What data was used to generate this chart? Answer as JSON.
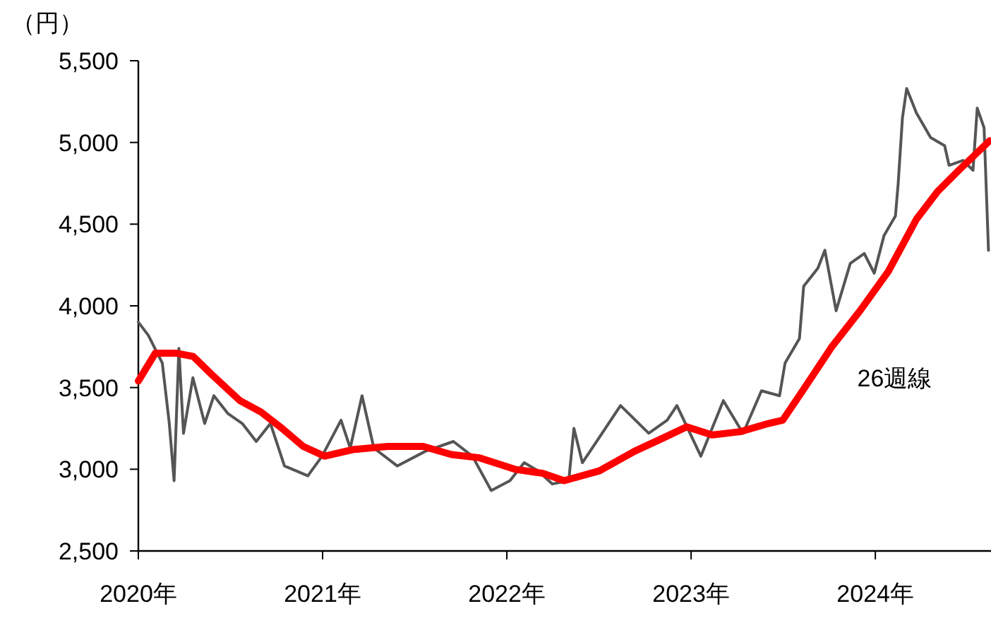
{
  "chart_data": {
    "type": "line",
    "ylabel": "（円）",
    "xlim": [
      2020,
      2024.62
    ],
    "xticks": [
      {
        "value": 2020,
        "label": "2020年"
      },
      {
        "value": 2021,
        "label": "2021年"
      },
      {
        "value": 2022,
        "label": "2022年"
      },
      {
        "value": 2023,
        "label": "2023年"
      },
      {
        "value": 2024,
        "label": "2024年"
      }
    ],
    "ylim": [
      2500,
      5500
    ],
    "yticks": [
      {
        "value": 2500,
        "label": "2,500"
      },
      {
        "value": 3000,
        "label": "3,000"
      },
      {
        "value": 3500,
        "label": "3,500"
      },
      {
        "value": 4000,
        "label": "4,000"
      },
      {
        "value": 4500,
        "label": "4,500"
      },
      {
        "value": 5000,
        "label": "5,000"
      },
      {
        "value": 5500,
        "label": "5,500"
      }
    ],
    "grid": false,
    "legend": false,
    "marker": "none",
    "series": [
      {
        "color": "#555555",
        "x": [
          2020,
          2020.054,
          2020.13,
          2020.168,
          2020.194,
          2020.22,
          2020.245,
          2020.296,
          2020.36,
          2020.41,
          2020.487,
          2020.564,
          2020.64,
          2020.717,
          2020.793,
          2020.92,
          2020.997,
          2021.1,
          2021.15,
          2021.214,
          2021.278,
          2021.405,
          2021.558,
          2021.71,
          2021.813,
          2021.915,
          2022.017,
          2022.094,
          2022.17,
          2022.247,
          2022.336,
          2022.364,
          2022.41,
          2022.517,
          2022.617,
          2022.77,
          2022.87,
          2022.923,
          2023.053,
          2023.175,
          2023.282,
          2023.382,
          2023.48,
          2023.51,
          2023.588,
          2023.611,
          2023.688,
          2023.726,
          2023.787,
          2023.864,
          2023.94,
          2023.994,
          2024.047,
          2024.109,
          2024.124,
          2024.147,
          2024.17,
          2024.223,
          2024.3,
          2024.376,
          2024.4,
          2024.476,
          2024.53,
          2024.553,
          2024.59,
          2024.614
        ],
        "values": [
          3900,
          3820,
          3650,
          3280,
          2930,
          3740,
          3220,
          3560,
          3280,
          3450,
          3340,
          3280,
          3170,
          3280,
          3020,
          2960,
          3080,
          3300,
          3130,
          3450,
          3130,
          3020,
          3110,
          3170,
          3080,
          2870,
          2930,
          3040,
          2990,
          2910,
          2930,
          3250,
          3040,
          3220,
          3390,
          3220,
          3300,
          3390,
          3080,
          3420,
          3220,
          3480,
          3450,
          3650,
          3800,
          4120,
          4230,
          4340,
          3970,
          4260,
          4320,
          4200,
          4430,
          4550,
          4750,
          5150,
          5330,
          5180,
          5030,
          4980,
          4860,
          4890,
          4830,
          5210,
          5090,
          4340
        ]
      },
      {
        "name": "26週線",
        "color": "#ff0000",
        "x": [
          2020,
          2020.092,
          2020.207,
          2020.298,
          2020.398,
          2020.551,
          2020.666,
          2020.78,
          2020.895,
          2021.01,
          2021.163,
          2021.354,
          2021.546,
          2021.699,
          2021.852,
          2022.043,
          2022.196,
          2022.311,
          2022.502,
          2022.693,
          2022.846,
          2022.976,
          2023.114,
          2023.267,
          2023.42,
          2023.497,
          2023.611,
          2023.764,
          2023.917,
          2024.07,
          2024.223,
          2024.338,
          2024.453,
          2024.62
        ],
        "values": [
          3540,
          3710,
          3710,
          3690,
          3580,
          3420,
          3350,
          3250,
          3140,
          3080,
          3120,
          3140,
          3140,
          3090,
          3070,
          3000,
          2975,
          2930,
          2990,
          3110,
          3190,
          3260,
          3210,
          3230,
          3280,
          3300,
          3490,
          3750,
          3970,
          4210,
          4530,
          4700,
          4830,
          5010
        ]
      }
    ]
  }
}
